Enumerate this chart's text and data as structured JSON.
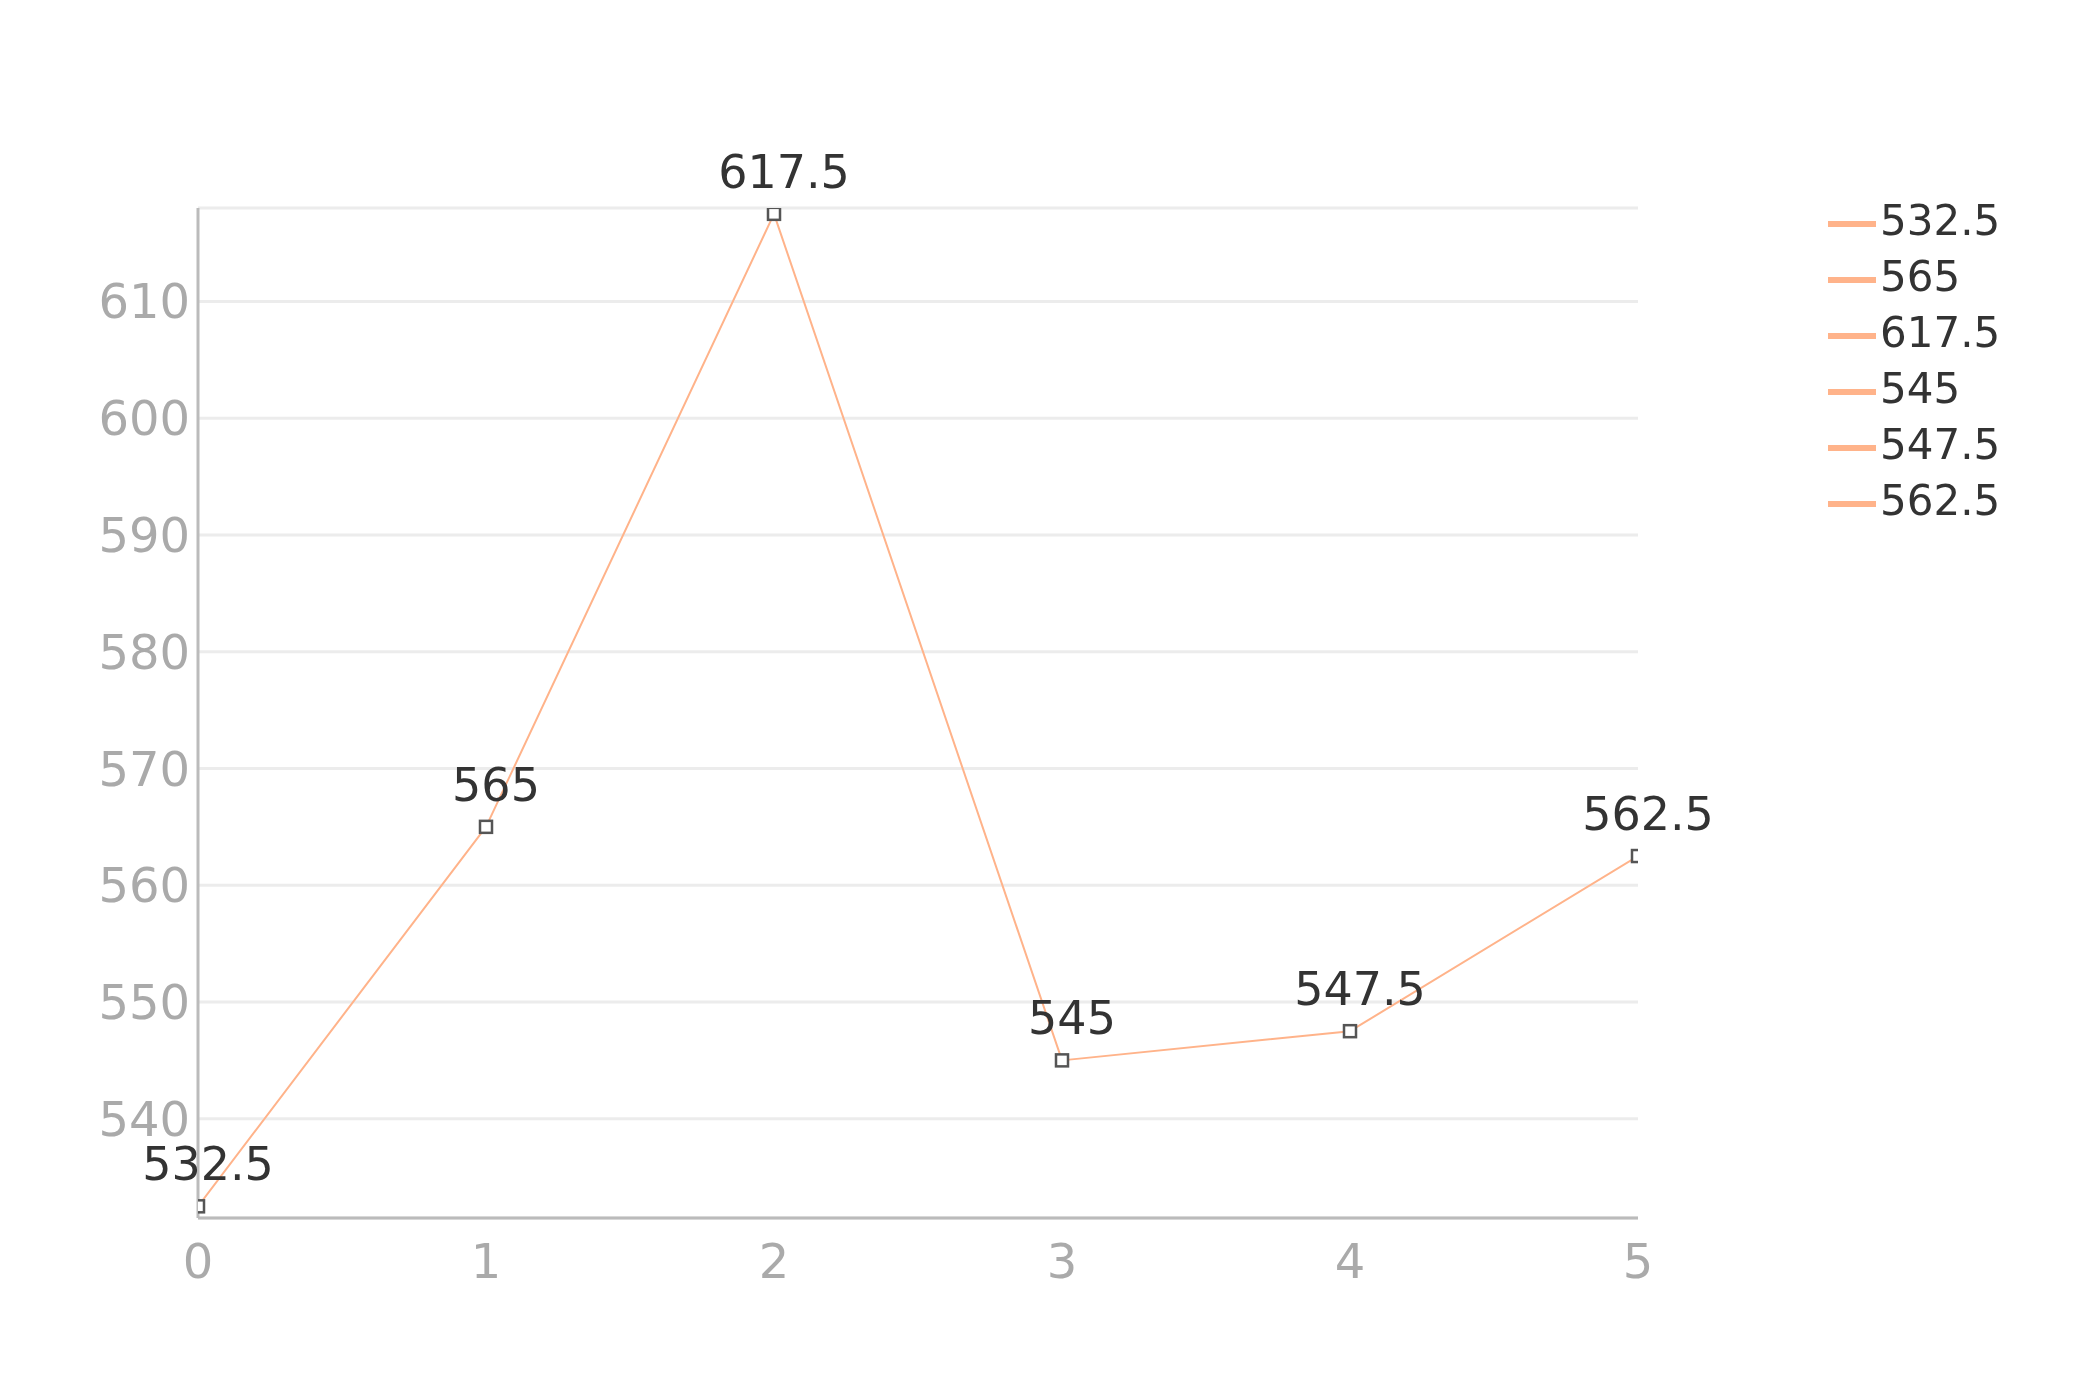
{
  "chart_data": {
    "type": "line",
    "x": [
      0,
      1,
      2,
      3,
      4,
      5
    ],
    "series": [
      {
        "name": "532.5",
        "color": "#ffb38a",
        "values": [
          532.5,
          565,
          617.5,
          545,
          547.5,
          562.5
        ]
      },
      {
        "name": "565",
        "color": "#ffb38a",
        "values": [
          null,
          null,
          null,
          null,
          null,
          null
        ]
      },
      {
        "name": "617.5",
        "color": "#ffb38a",
        "values": [
          null,
          null,
          null,
          null,
          null,
          null
        ]
      },
      {
        "name": "545",
        "color": "#ffb38a",
        "values": [
          null,
          null,
          null,
          null,
          null,
          null
        ]
      },
      {
        "name": "547.5",
        "color": "#ffb38a",
        "values": [
          null,
          null,
          null,
          null,
          null,
          null
        ]
      },
      {
        "name": "562.5",
        "color": "#ffb38a",
        "values": [
          null,
          null,
          null,
          null,
          null,
          null
        ]
      }
    ],
    "xlim": [
      0,
      5
    ],
    "xticks": [
      0,
      1,
      2,
      3,
      4,
      5
    ],
    "ylim": [
      531.5,
      618
    ],
    "yticks": [
      540,
      550,
      560,
      570,
      580,
      590,
      600,
      610
    ],
    "grid": "y",
    "marker": "square",
    "line_style": "solid",
    "data_labels": true,
    "legend": "top right"
  }
}
